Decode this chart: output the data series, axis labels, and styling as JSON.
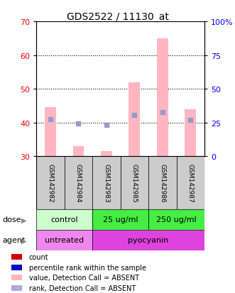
{
  "title": "GDS2522 / 11130_at",
  "samples": [
    "GSM142982",
    "GSM142984",
    "GSM142983",
    "GSM142985",
    "GSM142986",
    "GSM142987"
  ],
  "xlim": [
    0.5,
    6.5
  ],
  "ylim_left": [
    30,
    70
  ],
  "ylim_right": [
    0,
    100
  ],
  "yticks_left": [
    30,
    40,
    50,
    60,
    70
  ],
  "ytick_labels_left": [
    "30",
    "40",
    "50",
    "60",
    "70"
  ],
  "yticks_right": [
    0,
    25,
    50,
    75,
    100
  ],
  "ytick_labels_right": [
    "0",
    "25",
    "50",
    "75",
    "100%"
  ],
  "bar_values": [
    44.5,
    33.0,
    31.5,
    52.0,
    65.0,
    44.0
  ],
  "bar_color": "#ffb6c1",
  "rank_values": [
    41.0,
    39.8,
    39.3,
    42.3,
    43.2,
    40.8
  ],
  "rank_color": "#9999cc",
  "rank_size": 4,
  "dose_groups": [
    {
      "label": "control",
      "x_start": 0.5,
      "x_end": 2.5,
      "color": "#ccffcc"
    },
    {
      "label": "25 ug/ml",
      "x_start": 2.5,
      "x_end": 4.5,
      "color": "#44ee44"
    },
    {
      "label": "250 ug/ml",
      "x_start": 4.5,
      "x_end": 6.5,
      "color": "#44ee44"
    }
  ],
  "agent_groups": [
    {
      "label": "untreated",
      "x_start": 0.5,
      "x_end": 2.5,
      "color": "#ee88ee"
    },
    {
      "label": "pyocyanin",
      "x_start": 2.5,
      "x_end": 6.5,
      "color": "#dd44dd"
    }
  ],
  "legend_colors": [
    "#cc0000",
    "#0000cc",
    "#ffb6c1",
    "#aaaadd"
  ],
  "legend_labels": [
    "count",
    "percentile rank within the sample",
    "value, Detection Call = ABSENT",
    "rank, Detection Call = ABSENT"
  ],
  "bar_width": 0.4,
  "gray_box_color": "#cccccc"
}
